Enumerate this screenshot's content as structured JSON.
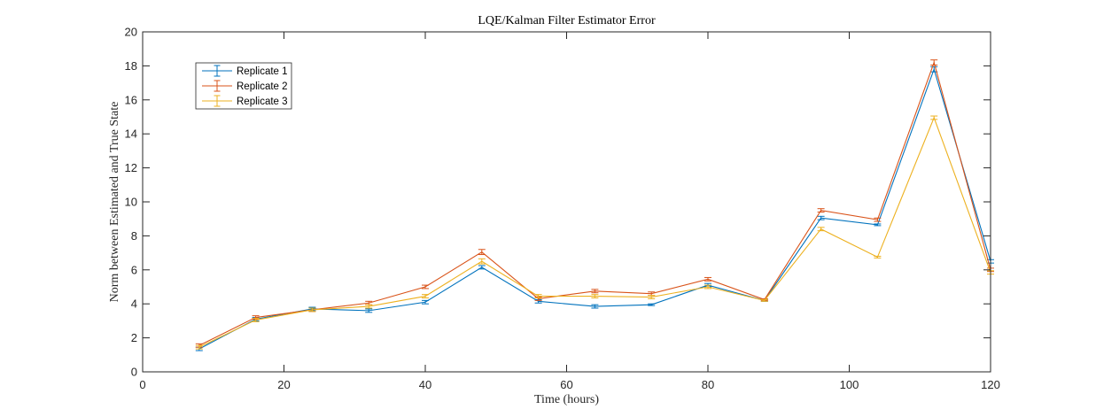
{
  "chart_data": {
    "type": "line",
    "title": "LQE/Kalman Filter Estimator Error",
    "xlabel": "Time (hours)",
    "ylabel": "Norm between Estimated and True State",
    "xlim": [
      0,
      120
    ],
    "ylim": [
      0,
      20
    ],
    "xticks": [
      0,
      20,
      40,
      60,
      80,
      100,
      120
    ],
    "yticks": [
      0,
      2,
      4,
      6,
      8,
      10,
      12,
      14,
      16,
      18,
      20
    ],
    "grid": false,
    "legend_position": "top-left",
    "error_bars": true,
    "x": [
      8,
      16,
      24,
      32,
      40,
      48,
      56,
      64,
      72,
      80,
      88,
      96,
      104,
      112,
      120
    ],
    "series": [
      {
        "name": "Replicate 1",
        "color": "#0072BD",
        "values": [
          1.35,
          3.1,
          3.7,
          3.6,
          4.1,
          6.15,
          4.15,
          3.85,
          3.95,
          5.1,
          4.2,
          9.05,
          8.65,
          17.8,
          6.5
        ],
        "errors": [
          0.1,
          0.1,
          0.1,
          0.1,
          0.1,
          0.1,
          0.1,
          0.1,
          0.05,
          0.1,
          0.05,
          0.1,
          0.05,
          0.15,
          0.1
        ]
      },
      {
        "name": "Replicate 2",
        "color": "#D95319",
        "values": [
          1.55,
          3.2,
          3.65,
          4.05,
          5.0,
          7.05,
          4.3,
          4.75,
          4.6,
          5.45,
          4.25,
          9.5,
          8.95,
          18.2,
          6.0
        ],
        "errors": [
          0.1,
          0.1,
          0.1,
          0.1,
          0.1,
          0.15,
          0.1,
          0.1,
          0.1,
          0.1,
          0.05,
          0.1,
          0.1,
          0.15,
          0.1
        ]
      },
      {
        "name": "Replicate 3",
        "color": "#EDB120",
        "values": [
          1.45,
          3.05,
          3.65,
          3.85,
          4.45,
          6.5,
          4.45,
          4.45,
          4.4,
          5.0,
          4.2,
          8.4,
          6.75,
          14.95,
          5.85
        ],
        "errors": [
          0.1,
          0.1,
          0.1,
          0.1,
          0.1,
          0.15,
          0.1,
          0.1,
          0.1,
          0.1,
          0.05,
          0.1,
          0.05,
          0.1,
          0.1
        ]
      }
    ]
  }
}
